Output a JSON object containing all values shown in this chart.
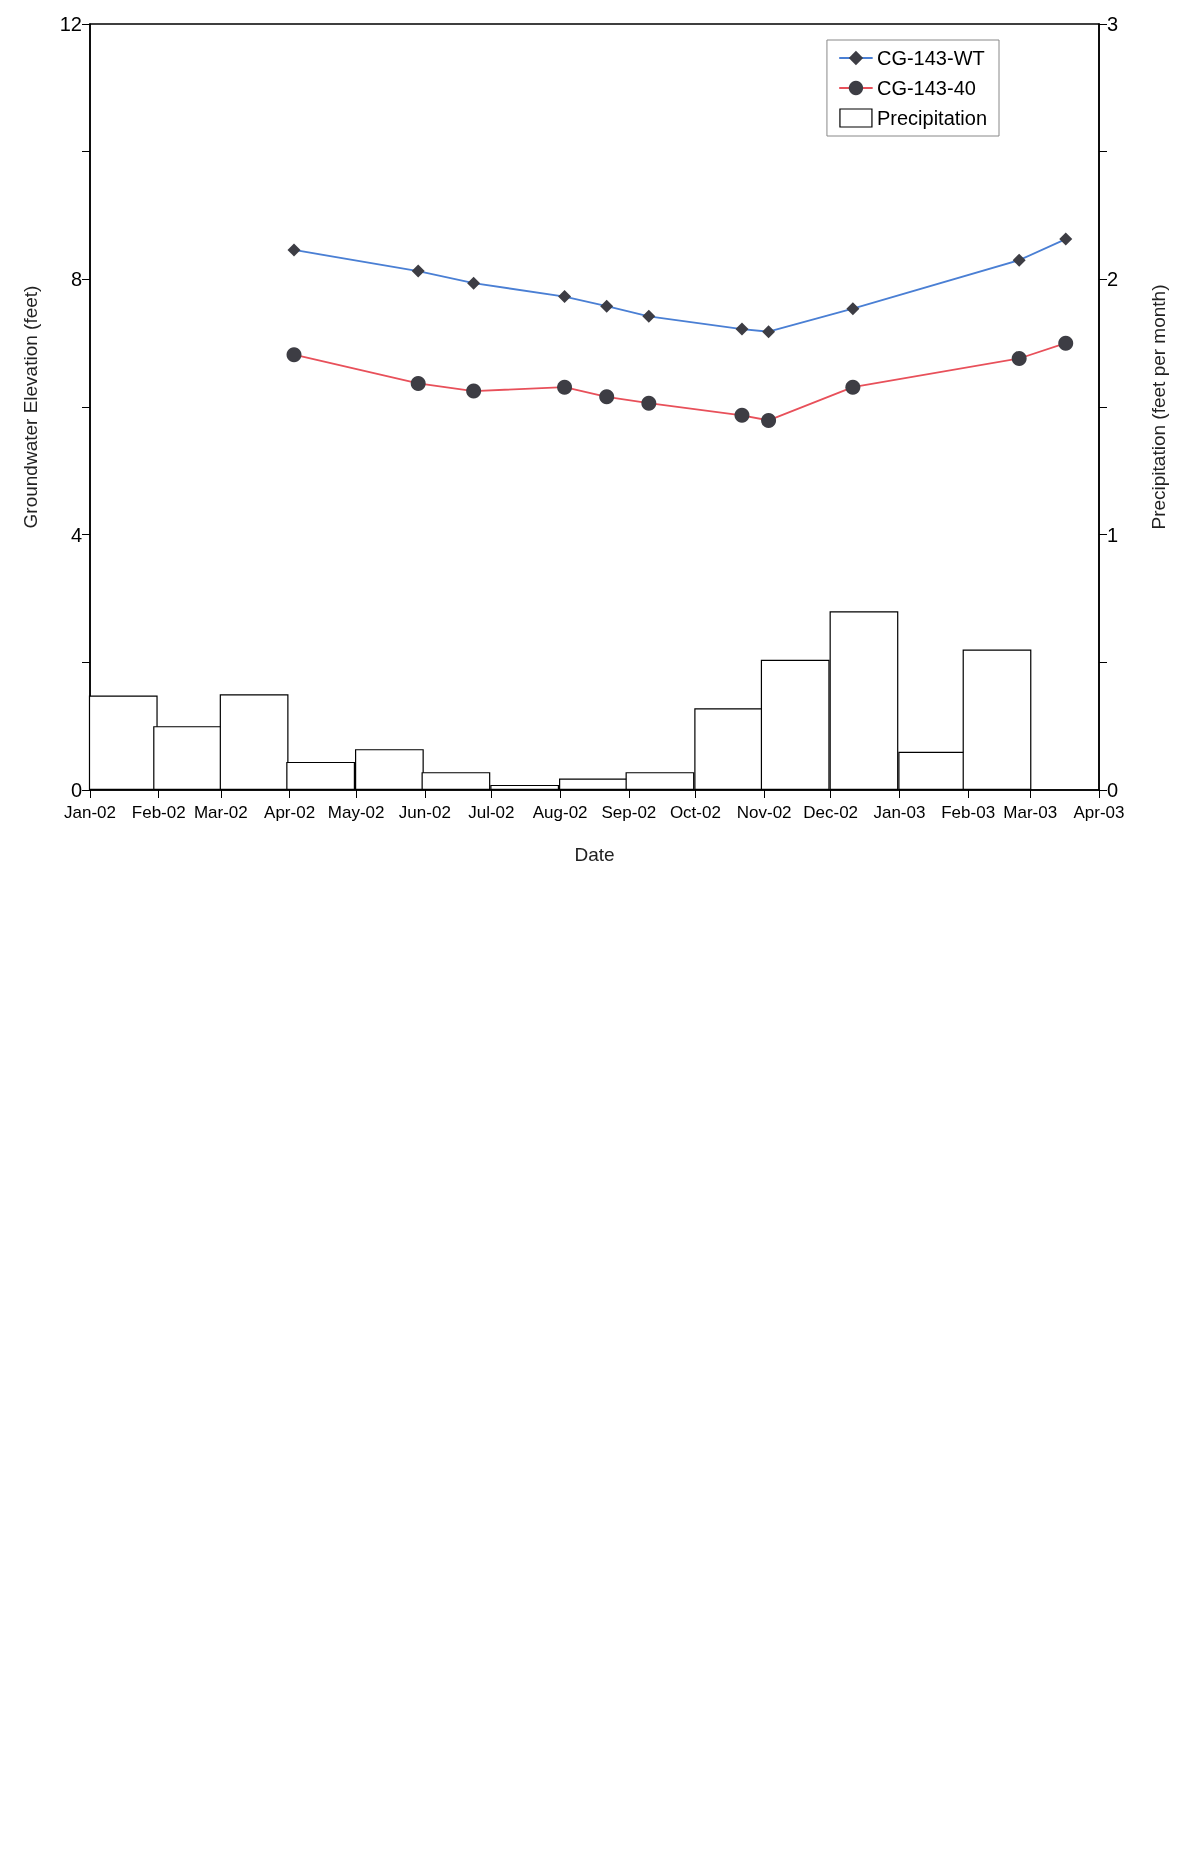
{
  "chart_data": {
    "type": "line",
    "xlabel": "Date",
    "ylabel": "Groundwater Elevation (feet)",
    "y2label": "Precipitation (feet per month)",
    "xlim": [
      "2002-01",
      "2003-04"
    ],
    "xticks": [
      {
        "value": "2002-01",
        "label": "Jan-02"
      },
      {
        "value": "2002-02",
        "label": "Feb-02"
      },
      {
        "value": "2002-03",
        "label": "Mar-02"
      },
      {
        "value": "2002-04",
        "label": "Apr-02"
      },
      {
        "value": "2002-05",
        "label": "May-02"
      },
      {
        "value": "2002-06",
        "label": "Jun-02"
      },
      {
        "value": "2002-07",
        "label": "Jul-02"
      },
      {
        "value": "2002-08",
        "label": "Aug-02"
      },
      {
        "value": "2002-09",
        "label": "Sep-02"
      },
      {
        "value": "2002-10",
        "label": "Oct-02"
      },
      {
        "value": "2002-11",
        "label": "Nov-02"
      },
      {
        "value": "2002-12",
        "label": "Dec-02"
      },
      {
        "value": "2003-01",
        "label": "Jan-03"
      },
      {
        "value": "2003-02",
        "label": "Feb-03"
      },
      {
        "value": "2003-03",
        "label": "Mar-03"
      },
      {
        "value": "2003-04",
        "label": "Apr-03"
      }
    ],
    "ylim": [
      0,
      12
    ],
    "yticks": [
      0,
      {
        "value": 2,
        "label": null
      },
      4,
      {
        "value": 6,
        "label": null
      },
      8,
      {
        "value": 10,
        "label": null
      },
      12
    ],
    "y2lim": [
      0,
      3
    ],
    "y2ticks": [
      0,
      {
        "value": 0.5,
        "label": null
      },
      1,
      {
        "value": 1.5,
        "label": null
      },
      2,
      {
        "value": 2.5,
        "label": null
      },
      3
    ],
    "grid": false,
    "legend": "top right",
    "series": [
      {
        "name": "CG-143-WT",
        "color": "#4a7fd4",
        "marker": "diamond",
        "x": [
          "2002-04-03",
          "2002-05-29",
          "2002-06-23",
          "2002-08-03",
          "2002-08-22",
          "2002-09-10",
          "2002-10-22",
          "2002-11-03",
          "2002-12-11",
          "2003-02-24",
          "2003-03-17"
        ],
        "values": [
          8.46,
          8.13,
          7.94,
          7.73,
          7.58,
          7.42,
          7.22,
          7.18,
          7.54,
          8.3,
          8.63
        ]
      },
      {
        "name": "CG-143-40",
        "color": "#e8505a",
        "marker": "circle",
        "x": [
          "2002-04-03",
          "2002-05-29",
          "2002-06-23",
          "2002-08-03",
          "2002-08-22",
          "2002-09-10",
          "2002-10-22",
          "2002-11-03",
          "2002-12-11",
          "2003-02-24",
          "2003-03-17"
        ],
        "values": [
          6.82,
          6.37,
          6.25,
          6.31,
          6.16,
          6.06,
          5.87,
          5.79,
          6.31,
          6.76,
          7.0
        ]
      },
      {
        "name": "Precipitation",
        "type": "bar",
        "axis": "y2",
        "color": "#ffffff",
        "x": [
          "2002-01-16",
          "2002-02-14",
          "2002-03-16",
          "2002-04-15",
          "2002-05-16",
          "2002-06-15",
          "2002-07-16",
          "2002-08-16",
          "2002-09-15",
          "2002-10-16",
          "2002-11-15",
          "2002-12-16",
          "2003-01-16",
          "2003-02-14"
        ],
        "values": [
          0.37,
          0.25,
          0.375,
          0.11,
          0.16,
          0.07,
          0.02,
          0.045,
          0.07,
          0.32,
          0.51,
          0.7,
          0.15,
          0.55
        ]
      }
    ]
  }
}
